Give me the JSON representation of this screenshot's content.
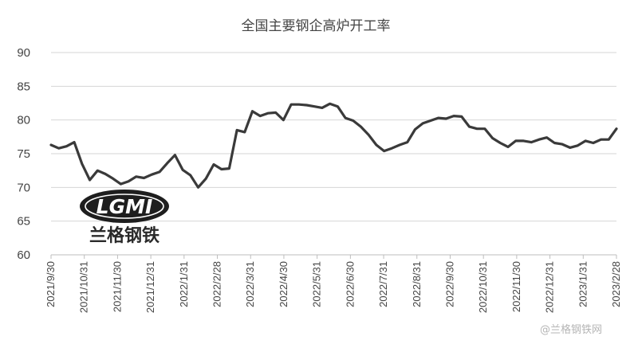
{
  "chart_data": {
    "type": "line",
    "title": "全国主要钢企高炉开工率",
    "xlabel": "",
    "ylabel": "",
    "ylim": [
      60,
      90
    ],
    "yticks": [
      60,
      65,
      70,
      75,
      80,
      85,
      90
    ],
    "grid": true,
    "legend": "none",
    "x_ticks": [
      "2021/9/30",
      "2021/10/31",
      "2021/11/30",
      "2021/12/31",
      "2022/1/31",
      "2022/2/28",
      "2022/3/31",
      "2022/4/30",
      "2022/5/31",
      "2022/6/30",
      "2022/7/31",
      "2022/8/31",
      "2022/9/30",
      "2022/10/31",
      "2022/11/30",
      "2022/12/31",
      "2023/1/31",
      "2023/2/28"
    ],
    "series": [
      {
        "color": "#3a3a3a",
        "values": [
          76.3,
          75.8,
          76.1,
          76.7,
          73.5,
          71.1,
          72.5,
          72.0,
          71.3,
          70.5,
          70.9,
          71.6,
          71.4,
          71.9,
          72.3,
          73.6,
          74.8,
          72.6,
          71.8,
          70.0,
          71.3,
          73.4,
          72.7,
          72.8,
          78.5,
          78.2,
          81.3,
          80.6,
          81.0,
          81.1,
          80.0,
          82.3,
          82.3,
          82.2,
          82.0,
          81.8,
          82.4,
          82.0,
          80.3,
          79.9,
          79.0,
          77.8,
          76.3,
          75.4,
          75.8,
          76.3,
          76.7,
          78.6,
          79.5,
          79.9,
          80.3,
          80.2,
          80.6,
          80.5,
          79.0,
          78.7,
          78.7,
          77.3,
          76.6,
          76.0,
          76.9,
          76.9,
          76.7,
          77.1,
          77.4,
          76.6,
          76.4,
          75.9,
          76.2,
          76.9,
          76.6,
          77.1,
          77.1,
          78.7
        ]
      }
    ]
  },
  "logo": {
    "brand_latin": "LGMI",
    "brand_cn": "兰格钢铁",
    "watermark": "@兰格钢铁网"
  }
}
